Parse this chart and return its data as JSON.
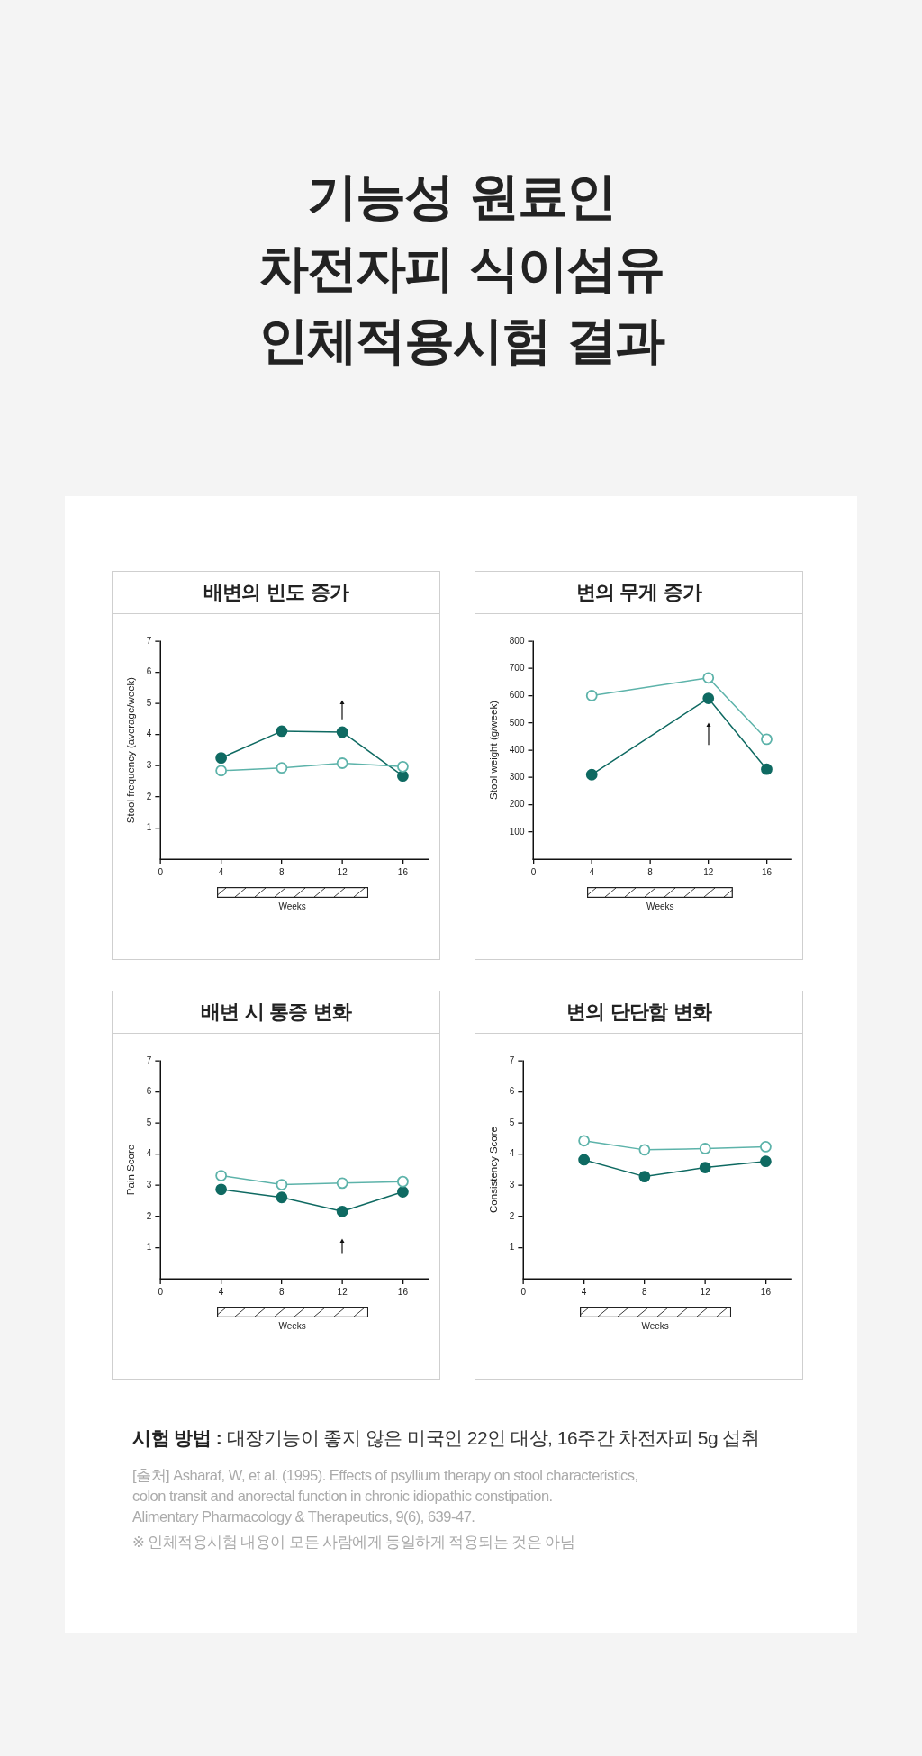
{
  "chart_data": [
    {
      "type": "line",
      "title": "배변의 빈도 증가",
      "ylabel": "Stool frequency (average/week)",
      "xlabel": "Weeks",
      "annotations": [
        "기능성 원료인\n차전자피 식이섬유\n인체적용시험 결과"
      ],
      "x": [
        4,
        8,
        12,
        16
      ],
      "xlim": [
        0,
        17.7
      ],
      "xticks": [
        0,
        4,
        8,
        12,
        16
      ],
      "ylim": [
        0,
        7
      ],
      "yticks": [
        1,
        2,
        3,
        4,
        5,
        6,
        7
      ],
      "marker": "circle",
      "line_style": "solid",
      "grid": false,
      "legend": false,
      "series": [
        {
          "color": "#0f6a62",
          "values": [
            3.25,
            4.11,
            4.08,
            2.67
          ]
        },
        {
          "color": "#5db3aa",
          "values": [
            2.84,
            2.93,
            3.08,
            2.97
          ]
        }
      ]
    },
    {
      "type": "line",
      "title": "변의 무게 증가",
      "ylabel": "Stool weight (g/week)",
      "xlabel": "Weeks",
      "x": [
        4,
        12,
        16
      ],
      "xlim": [
        0,
        17.7
      ],
      "xticks": [
        0,
        4,
        8,
        12,
        16
      ],
      "ylim": [
        0,
        800
      ],
      "yticks": [
        100,
        200,
        300,
        400,
        500,
        600,
        700,
        800
      ],
      "marker": "circle",
      "line_style": "solid",
      "grid": false,
      "legend": false,
      "series": [
        {
          "color": "#0f6a62",
          "values": [
            310,
            590,
            330
          ]
        },
        {
          "color": "#5db3aa",
          "values": [
            600,
            665,
            440
          ]
        }
      ]
    },
    {
      "type": "line",
      "title": "배변 시 통증 변화",
      "ylabel": "Pain Score",
      "xlabel": "Weeks",
      "x": [
        4,
        8,
        12,
        16
      ],
      "xlim": [
        0,
        17.7
      ],
      "xticks": [
        0,
        4,
        8,
        12,
        16
      ],
      "ylim": [
        0,
        7
      ],
      "yticks": [
        1,
        2,
        3,
        4,
        5,
        6,
        7
      ],
      "marker": "circle",
      "line_style": "solid",
      "grid": false,
      "legend": false,
      "series": [
        {
          "color": "#0f6a62",
          "values": [
            2.87,
            2.61,
            2.16,
            2.79
          ]
        },
        {
          "color": "#5db3aa",
          "values": [
            3.31,
            3.02,
            3.07,
            3.12
          ]
        }
      ]
    },
    {
      "type": "line",
      "title": "변의 단단함 변화",
      "ylabel": "Consistency Score",
      "xlabel": "Weeks",
      "annotations": [
        "시험 방법 :",
        "대장기능이 좋지 않은 미국인 22인 대상, 16주간 차전자피 5g 섭취",
        "[출처] Asharaf, W, et al. (1995). Effects of psyllium therapy on stool characteristics,\ncolon transit and anorectal function in chronic idiopathic constipation.\nAlimentary Pharmacology & Therapeutics, 9(6), 639-47.",
        "※ 인체적용시험 내용이 모든 사람에게 동일하게 적용되는 것은 아님"
      ],
      "x": [
        4,
        8,
        12,
        16
      ],
      "xlim": [
        0,
        17.7
      ],
      "xticks": [
        0,
        4,
        8,
        12,
        16
      ],
      "ylim": [
        0,
        7
      ],
      "yticks": [
        1,
        2,
        3,
        4,
        5,
        6,
        7
      ],
      "marker": "circle",
      "line_style": "solid",
      "grid": false,
      "legend": false,
      "series": [
        {
          "color": "#0f6a62",
          "values": [
            3.82,
            3.28,
            3.57,
            3.77
          ]
        },
        {
          "color": "#5db3aa",
          "values": [
            4.43,
            4.14,
            4.18,
            4.24
          ]
        }
      ]
    }
  ]
}
